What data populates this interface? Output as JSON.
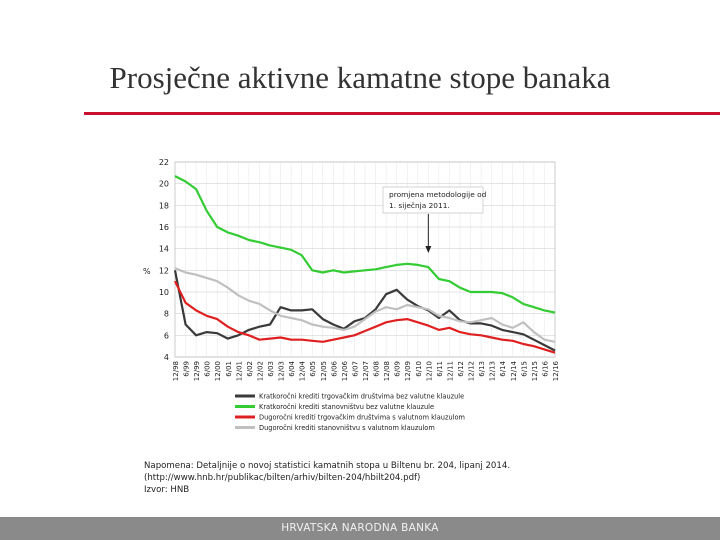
{
  "slide": {
    "title": "Prosječne aktivne kamatne stope banaka",
    "footer": "HRVATSKA NARODNA BANKA",
    "accent_color": "#c8102e"
  },
  "note": {
    "line1": "Napomena: Detaljnije o novoj statistici kamatnih stopa u Biltenu br. 204, lipanj 2014.",
    "line2": "(http://www.hnb.hr/publikac/bilten/arhiv/bilten-204/hbilt204.pdf)",
    "line3": "Izvor: HNB"
  },
  "chart_data": {
    "type": "line",
    "ylabel": "%",
    "ylim": [
      4,
      22
    ],
    "yticks": [
      4,
      6,
      8,
      10,
      12,
      14,
      16,
      18,
      20,
      22
    ],
    "grid": true,
    "x_tick_labels": [
      "12/98",
      "6/99",
      "12/99",
      "6/00",
      "12/00",
      "6/01",
      "12/01",
      "6/02",
      "12/02",
      "6/03",
      "12/03",
      "6/04",
      "12/04",
      "6/05",
      "12/05",
      "6/06",
      "12/06",
      "6/07",
      "12/07",
      "6/08",
      "12/08",
      "6/09",
      "12/09",
      "6/10",
      "12/10",
      "6/11",
      "12/11",
      "6/12",
      "12/12",
      "6/13",
      "12/13",
      "6/14",
      "12/14",
      "6/15",
      "12/15",
      "6/16",
      "12/16"
    ],
    "annotation": {
      "line1": "promjena metodologije od",
      "line2": "1. siječnja 2011.",
      "at": "12/10"
    },
    "legend_position": "bottom",
    "series": [
      {
        "name": "Kratkoročni krediti trgovačkim društvima bez valutne klauzule",
        "color": "#3a3a3a",
        "points": [
          [
            "12/98",
            12
          ],
          [
            "6/99",
            7
          ],
          [
            "12/99",
            6
          ],
          [
            "6/00",
            6.3
          ],
          [
            "12/00",
            6.2
          ],
          [
            "6/01",
            5.7
          ],
          [
            "12/01",
            6
          ],
          [
            "6/02",
            6.5
          ],
          [
            "12/02",
            6.8
          ],
          [
            "6/03",
            7
          ],
          [
            "12/03",
            8.6
          ],
          [
            "6/04",
            8.3
          ],
          [
            "12/04",
            8.3
          ],
          [
            "6/05",
            8.4
          ],
          [
            "12/05",
            7.5
          ],
          [
            "6/06",
            7
          ],
          [
            "12/06",
            6.6
          ],
          [
            "6/07",
            7.3
          ],
          [
            "12/07",
            7.6
          ],
          [
            "6/08",
            8.4
          ],
          [
            "12/08",
            9.8
          ],
          [
            "6/09",
            10.2
          ],
          [
            "12/09",
            9.3
          ],
          [
            "6/10",
            8.7
          ],
          [
            "12/10",
            8.3
          ],
          [
            "6/11",
            7.6
          ],
          [
            "12/11",
            8.3
          ],
          [
            "6/12",
            7.4
          ],
          [
            "12/12",
            7.1
          ],
          [
            "6/13",
            7.1
          ],
          [
            "12/13",
            6.9
          ],
          [
            "6/14",
            6.5
          ],
          [
            "12/14",
            6.3
          ],
          [
            "6/15",
            6.1
          ],
          [
            "12/15",
            5.6
          ],
          [
            "6/16",
            5.1
          ],
          [
            "12/16",
            4.6
          ]
        ]
      },
      {
        "name": "Kratkoročni krediti stanovništvu bez valutne klauzule",
        "color": "#33cc33",
        "points": [
          [
            "12/98",
            20.7
          ],
          [
            "6/99",
            20.2
          ],
          [
            "12/99",
            19.5
          ],
          [
            "6/00",
            17.5
          ],
          [
            "12/00",
            16
          ],
          [
            "6/01",
            15.5
          ],
          [
            "12/01",
            15.2
          ],
          [
            "6/02",
            14.8
          ],
          [
            "12/02",
            14.6
          ],
          [
            "6/03",
            14.3
          ],
          [
            "12/03",
            14.1
          ],
          [
            "6/04",
            13.9
          ],
          [
            "12/04",
            13.4
          ],
          [
            "6/05",
            12
          ],
          [
            "12/05",
            11.8
          ],
          [
            "6/06",
            12
          ],
          [
            "12/06",
            11.8
          ],
          [
            "6/07",
            11.9
          ],
          [
            "12/07",
            12
          ],
          [
            "6/08",
            12.1
          ],
          [
            "12/08",
            12.3
          ],
          [
            "6/09",
            12.5
          ],
          [
            "12/09",
            12.6
          ],
          [
            "6/10",
            12.5
          ],
          [
            "12/10",
            12.3
          ],
          [
            "6/11",
            11.2
          ],
          [
            "12/11",
            11
          ],
          [
            "6/12",
            10.4
          ],
          [
            "12/12",
            10
          ],
          [
            "6/13",
            10
          ],
          [
            "12/13",
            10
          ],
          [
            "6/14",
            9.9
          ],
          [
            "12/14",
            9.5
          ],
          [
            "6/15",
            8.9
          ],
          [
            "12/15",
            8.6
          ],
          [
            "6/16",
            8.3
          ],
          [
            "12/16",
            8.1
          ]
        ]
      },
      {
        "name": "Dugoročni krediti trgovačkim društvima s valutnom klauzulom",
        "color": "#e02020",
        "points": [
          [
            "12/98",
            11
          ],
          [
            "6/99",
            9
          ],
          [
            "12/99",
            8.3
          ],
          [
            "6/00",
            7.8
          ],
          [
            "12/00",
            7.5
          ],
          [
            "6/01",
            6.8
          ],
          [
            "12/01",
            6.3
          ],
          [
            "6/02",
            6
          ],
          [
            "12/02",
            5.6
          ],
          [
            "6/03",
            5.7
          ],
          [
            "12/03",
            5.8
          ],
          [
            "6/04",
            5.6
          ],
          [
            "12/04",
            5.6
          ],
          [
            "6/05",
            5.5
          ],
          [
            "12/05",
            5.4
          ],
          [
            "6/06",
            5.6
          ],
          [
            "12/06",
            5.8
          ],
          [
            "6/07",
            6
          ],
          [
            "12/07",
            6.4
          ],
          [
            "6/08",
            6.8
          ],
          [
            "12/08",
            7.2
          ],
          [
            "6/09",
            7.4
          ],
          [
            "12/09",
            7.5
          ],
          [
            "6/10",
            7.2
          ],
          [
            "12/10",
            6.9
          ],
          [
            "6/11",
            6.5
          ],
          [
            "12/11",
            6.7
          ],
          [
            "6/12",
            6.3
          ],
          [
            "12/12",
            6.1
          ],
          [
            "6/13",
            6
          ],
          [
            "12/13",
            5.8
          ],
          [
            "6/14",
            5.6
          ],
          [
            "12/14",
            5.5
          ],
          [
            "6/15",
            5.2
          ],
          [
            "12/15",
            5
          ],
          [
            "6/16",
            4.7
          ],
          [
            "12/16",
            4.4
          ]
        ]
      },
      {
        "name": "Dugoročni krediti stanovništvu s valutnom klauzulom",
        "color": "#c0c0c0",
        "points": [
          [
            "12/98",
            12.2
          ],
          [
            "6/99",
            11.8
          ],
          [
            "12/99",
            11.6
          ],
          [
            "6/00",
            11.3
          ],
          [
            "12/00",
            11
          ],
          [
            "6/01",
            10.4
          ],
          [
            "12/01",
            9.7
          ],
          [
            "6/02",
            9.2
          ],
          [
            "12/02",
            8.9
          ],
          [
            "6/03",
            8.3
          ],
          [
            "12/03",
            7.8
          ],
          [
            "6/04",
            7.6
          ],
          [
            "12/04",
            7.4
          ],
          [
            "6/05",
            7
          ],
          [
            "12/05",
            6.8
          ],
          [
            "6/06",
            6.7
          ],
          [
            "12/06",
            6.5
          ],
          [
            "6/07",
            6.8
          ],
          [
            "12/07",
            7.5
          ],
          [
            "6/08",
            8.2
          ],
          [
            "12/08",
            8.6
          ],
          [
            "6/09",
            8.4
          ],
          [
            "12/09",
            8.8
          ],
          [
            "6/10",
            8.6
          ],
          [
            "12/10",
            8.4
          ],
          [
            "6/11",
            7.8
          ],
          [
            "12/11",
            7.6
          ],
          [
            "6/12",
            7.3
          ],
          [
            "12/12",
            7.2
          ],
          [
            "6/13",
            7.4
          ],
          [
            "12/13",
            7.6
          ],
          [
            "6/14",
            7
          ],
          [
            "12/14",
            6.7
          ],
          [
            "6/15",
            7.2
          ],
          [
            "12/15",
            6.3
          ],
          [
            "6/16",
            5.6
          ],
          [
            "12/16",
            5.4
          ]
        ]
      }
    ]
  }
}
